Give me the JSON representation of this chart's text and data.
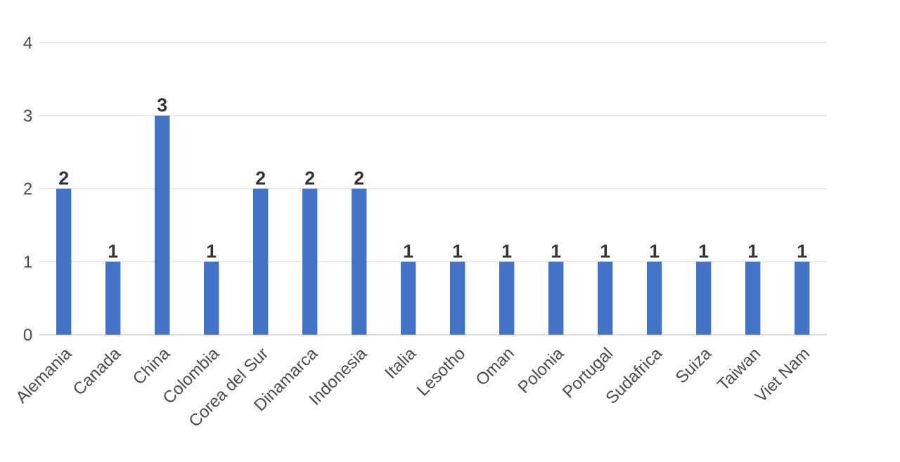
{
  "chart_data": {
    "type": "bar",
    "categories": [
      "Alemania",
      "Canada",
      "China",
      "Colombia",
      "Corea del Sur",
      "Dinamarca",
      "Indonesia",
      "Italia",
      "Lesotho",
      "Oman",
      "Polonia",
      "Portugal",
      "Sudafrica",
      "Suiza",
      "Taiwan",
      "Viet Nam"
    ],
    "values": [
      2,
      1,
      3,
      1,
      2,
      2,
      2,
      1,
      1,
      1,
      1,
      1,
      1,
      1,
      1,
      1
    ],
    "color": "#4472c4",
    "ylim": [
      0,
      4
    ],
    "yticks": [
      0,
      1,
      2,
      3,
      4
    ],
    "grid": "y",
    "data_labels": true
  }
}
